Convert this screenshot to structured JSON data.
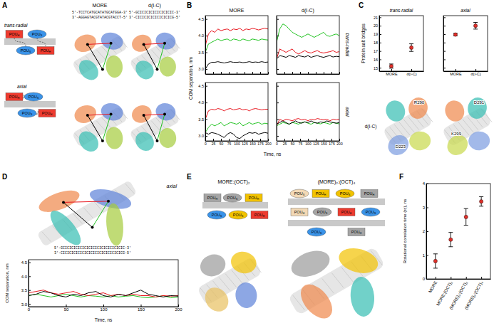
{
  "panel_letters": [
    "A",
    "B",
    "C",
    "D",
    "E",
    "F"
  ],
  "domain_labels": {
    "pou_s": {
      "base": "POU",
      "sub": "S"
    },
    "pou_h": {
      "base": "POU",
      "sub": "H"
    }
  },
  "panel_a": {
    "columns": [
      "MORE",
      "d(I-C)"
    ],
    "sequences": [
      [
        "5'-TCCTCATGCATATGCATGGA-3'",
        "3'-AGGAGTACGTATACGTACCT-5'"
      ],
      [
        "5'-GCICICICICICICICIC-3'",
        "3'-CICICICICICICICICG-5'"
      ]
    ],
    "rows": [
      "trans-radial",
      "axial"
    ]
  },
  "panel_c_structures": {
    "row_label": "d(I-C)",
    "residues": [
      [
        "R290",
        "D223"
      ],
      [
        "D291",
        "K299"
      ]
    ]
  },
  "panel_d": {
    "sequences": [
      "5'-GCICICICICICICICICICICICICICIC-3'",
      "3'-CICICICICICICICICICICICICICICG-5'"
    ]
  },
  "panel_e": {
    "titles": [
      "MORE:(OCT)₂",
      "(MORE)₂:(OCT)₄"
    ]
  },
  "chart_data": [
    {
      "type": "line",
      "columns": [
        "MORE",
        "d(I-C)"
      ],
      "rows": [
        "trans-radial",
        "axial"
      ],
      "xlabel": "Time, ns",
      "ylabel": "COM separation, nm",
      "x": [
        0,
        10,
        20,
        30,
        40,
        50,
        60,
        70,
        80,
        90,
        100,
        110,
        120,
        130,
        140,
        150,
        160,
        170,
        180,
        190,
        200
      ],
      "xlim": [
        0,
        200
      ],
      "ylim": [
        2.85,
        4.6
      ],
      "xticks": [
        0,
        25,
        50,
        75,
        100,
        125,
        150,
        175,
        200
      ],
      "yticks": [
        {
          "value": 3.0,
          "label": "3.0"
        },
        {
          "value": 3.5,
          "label": "3.5"
        },
        {
          "value": 4.0,
          "label": "4.0"
        },
        {
          "value": 4.5,
          "label": "4.5"
        }
      ],
      "panels": [
        {
          "series": [
            {
              "color": "#21c321",
              "values": [
                3.5,
                3.75,
                3.8,
                3.85,
                3.9,
                3.85,
                3.88,
                3.9,
                3.85,
                3.9,
                3.88,
                3.85,
                3.9,
                3.87,
                3.85,
                3.9,
                3.88,
                3.86,
                3.9,
                3.88,
                3.87
              ]
            },
            {
              "color": "#e8141c",
              "values": [
                3.7,
                4.05,
                4.15,
                4.1,
                4.2,
                4.15,
                4.18,
                4.2,
                4.15,
                4.2,
                4.18,
                4.22,
                4.15,
                4.2,
                4.18,
                4.22,
                4.2,
                4.17,
                4.2,
                4.22,
                4.2
              ]
            },
            {
              "color": "#000000",
              "values": [
                3.0,
                3.15,
                3.2,
                3.2,
                3.22,
                3.2,
                3.18,
                3.2,
                3.22,
                3.2,
                3.2,
                3.21,
                3.19,
                3.2,
                3.22,
                3.2,
                3.21,
                3.2,
                3.22,
                3.2,
                3.21
              ]
            }
          ]
        },
        {
          "series": [
            {
              "color": "#21c321",
              "values": [
                3.8,
                4.2,
                4.35,
                4.3,
                4.2,
                4.1,
                4.05,
                4.0,
                3.95,
                4.0,
                4.05,
                4.0,
                3.95,
                4.0,
                4.05,
                4.1,
                4.0,
                3.98,
                4.02,
                4.05,
                4.0
              ]
            },
            {
              "color": "#e8141c",
              "values": [
                3.3,
                3.6,
                3.55,
                3.5,
                3.55,
                3.6,
                3.5,
                3.45,
                3.5,
                3.55,
                3.5,
                3.48,
                3.52,
                3.55,
                3.5,
                3.48,
                3.5,
                3.52,
                3.55,
                3.5,
                3.52
              ]
            },
            {
              "color": "#000000",
              "values": [
                3.3,
                3.4,
                3.38,
                3.35,
                3.4,
                3.38,
                3.35,
                3.4,
                3.38,
                3.36,
                3.4,
                3.35,
                3.38,
                3.4,
                3.37,
                3.35,
                3.38,
                3.4,
                3.36,
                3.38,
                3.37
              ]
            }
          ]
        },
        {
          "series": [
            {
              "color": "#21c321",
              "values": [
                3.1,
                3.25,
                3.35,
                3.3,
                3.35,
                3.4,
                3.3,
                3.35,
                3.4,
                3.38,
                3.35,
                3.4,
                3.3,
                3.35,
                3.4,
                3.35,
                3.38,
                3.4,
                3.35,
                3.38,
                3.36
              ]
            },
            {
              "color": "#e8141c",
              "values": [
                3.5,
                3.75,
                3.8,
                3.78,
                3.82,
                3.8,
                3.75,
                3.8,
                3.82,
                3.78,
                3.8,
                3.82,
                3.78,
                3.8,
                3.75,
                3.8,
                3.82,
                3.8,
                3.78,
                3.8,
                3.8
              ]
            },
            {
              "color": "#000000",
              "values": [
                3.1,
                3.05,
                3.1,
                3.08,
                3.05,
                3.0,
                2.95,
                3.05,
                3.1,
                3.05,
                2.95,
                2.92,
                3.0,
                3.05,
                3.1,
                3.08,
                3.1,
                3.05,
                3.08,
                3.1,
                3.08
              ]
            }
          ]
        },
        {
          "series": [
            {
              "color": "#21c321",
              "values": [
                3.3,
                3.35,
                3.4,
                3.38,
                3.35,
                3.4,
                3.38,
                3.35,
                3.4,
                3.42,
                3.38,
                3.35,
                3.4,
                3.38,
                3.36,
                3.4,
                3.38,
                3.35,
                3.4,
                3.38,
                3.36
              ]
            },
            {
              "color": "#e8141c",
              "values": [
                3.3,
                3.5,
                3.45,
                3.5,
                3.48,
                3.45,
                3.5,
                3.52,
                3.48,
                3.5,
                3.45,
                3.5,
                3.48,
                3.52,
                3.5,
                3.48,
                3.5,
                3.45,
                3.5,
                3.48,
                3.5
              ]
            },
            {
              "color": "#000000",
              "values": [
                3.35,
                3.4,
                3.45,
                3.4,
                3.35,
                3.4,
                3.45,
                3.4,
                3.38,
                3.42,
                3.4,
                3.45,
                3.4,
                3.38,
                3.42,
                3.4,
                3.45,
                3.42,
                3.4,
                3.38,
                3.4
              ]
            }
          ]
        }
      ]
    },
    {
      "type": "line",
      "title": "axial",
      "xlabel": "Time, ns",
      "ylabel": "COM separation, nm",
      "x": [
        0,
        10,
        20,
        30,
        40,
        50,
        60,
        70,
        80,
        90,
        100,
        110,
        120,
        130,
        140,
        150,
        160,
        170,
        180,
        190,
        200
      ],
      "xlim": [
        0,
        200
      ],
      "ylim": [
        2.9,
        4.6
      ],
      "xticks": [
        0,
        50,
        100,
        150,
        200
      ],
      "yticks": [
        {
          "value": 3.0,
          "label": "3.0"
        },
        {
          "value": 3.5,
          "label": "3.5"
        },
        {
          "value": 4.0,
          "label": "4.0"
        },
        {
          "value": 4.5,
          "label": "4.5"
        }
      ],
      "series": [
        {
          "color": "#21c321",
          "values": [
            3.3,
            3.35,
            3.3,
            3.25,
            3.3,
            3.35,
            3.3,
            3.25,
            3.3,
            3.28,
            3.25,
            3.3,
            3.25,
            3.28,
            3.3,
            3.25,
            3.22,
            3.25,
            3.3,
            3.22,
            3.25
          ]
        },
        {
          "color": "#e8141c",
          "values": [
            3.4,
            3.45,
            3.5,
            3.4,
            3.35,
            3.4,
            3.45,
            3.35,
            3.3,
            3.35,
            3.4,
            3.3,
            3.35,
            3.3,
            3.35,
            3.3,
            3.3,
            3.25,
            3.3,
            3.28,
            3.3
          ]
        },
        {
          "color": "#000000",
          "values": [
            3.3,
            3.35,
            3.45,
            3.4,
            3.3,
            3.25,
            3.35,
            3.3,
            3.4,
            3.45,
            3.3,
            3.25,
            3.35,
            3.3,
            3.4,
            3.5,
            3.35,
            3.3,
            3.25,
            3.3,
            3.28
          ]
        }
      ]
    },
    {
      "type": "scatter",
      "ylabel": "Protein salt bridges",
      "categories": [
        "MORE",
        "d(I-C)"
      ],
      "ylim": [
        14.6,
        21.2
      ],
      "yticks": [
        15,
        16,
        17,
        18,
        19,
        20,
        21
      ],
      "color": "#e0302a",
      "panels": [
        {
          "title": "trans-radial",
          "values": [
            15.2,
            17.4
          ],
          "errors": [
            0.25,
            0.45
          ]
        },
        {
          "title": "axial",
          "values": [
            18.95,
            20.0
          ],
          "errors": [
            0.15,
            0.4
          ]
        }
      ]
    },
    {
      "type": "scatter",
      "ylabel": "Rotational correlation time (τc), ns",
      "categories": [
        "MORE",
        "MORE:(OCT)₂",
        "(MORE)₂:(OCT)₂",
        "(MORE)₂:(OCT)₄"
      ],
      "ylim": [
        0,
        4
      ],
      "yticks": [
        0,
        1,
        2,
        3,
        4
      ],
      "color": "#e0302a",
      "values": [
        0.75,
        1.65,
        2.6,
        3.25
      ],
      "errors": [
        0.3,
        0.3,
        0.35,
        0.2
      ]
    }
  ]
}
